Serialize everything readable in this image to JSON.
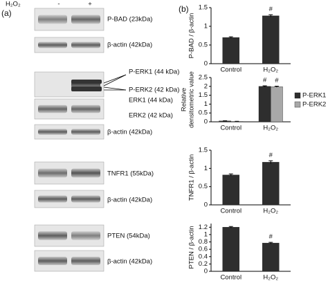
{
  "panel_a": {
    "label": "(a)",
    "treatment": "H₂O₂",
    "lanes": [
      "-",
      "+"
    ],
    "blots": [
      "P-BAD (23kDa)",
      "β-actin (42kDa)",
      "P-ERK1 (44 kDa)",
      "P-ERK2 (42 kDa)",
      "ERK1 (44 kDa)",
      "ERK2 (42 kDa)",
      "β-actin (42kDa)",
      "TNFR1 (55kDa)",
      "β-actin (42kDa)",
      "PTEN (54kDa)",
      "β-actin (42kDa)"
    ]
  },
  "panel_b": {
    "label": "(b)"
  },
  "chart_data": [
    {
      "type": "bar",
      "ylabel": [
        "P-BAD / β-actin"
      ],
      "categories": [
        "Control",
        "H₂O₂"
      ],
      "values": [
        0.7,
        1.28
      ],
      "errors": [
        0.02,
        0.03
      ],
      "color": "#2e2e2e",
      "ylim": [
        0,
        1.5
      ],
      "yticks": [
        0,
        0.5,
        1,
        1.5
      ],
      "annotations": [
        "#"
      ]
    },
    {
      "type": "bar",
      "ylabel": [
        "Relative",
        "densitometric value"
      ],
      "categories": [
        "Control",
        "H₂O₂"
      ],
      "series": [
        {
          "name": "P-ERK1",
          "color": "#2e2e2e",
          "values": [
            0.05,
            2.0
          ],
          "errors": [
            0.01,
            0.03
          ]
        },
        {
          "name": "P-ERK2",
          "color": "#a8a8a8",
          "values": [
            0.02,
            1.98
          ],
          "errors": [
            0.01,
            0.03
          ]
        }
      ],
      "ylim": [
        0,
        2.5
      ],
      "yticks": [
        0,
        0.5,
        1,
        1.5,
        2,
        2.5
      ],
      "annotations": [
        "#",
        "#"
      ],
      "legend": "right"
    },
    {
      "type": "bar",
      "ylabel": [
        "TNFR1 / β-actin"
      ],
      "categories": [
        "Control",
        "H₂O₂"
      ],
      "values": [
        0.82,
        1.17
      ],
      "errors": [
        0.03,
        0.04
      ],
      "color": "#2e2e2e",
      "ylim": [
        0,
        1.5
      ],
      "yticks": [
        0,
        0.5,
        1,
        1.5
      ],
      "annotations": [
        "#"
      ]
    },
    {
      "type": "bar",
      "ylabel": [
        "PTEN / β-actin"
      ],
      "categories": [
        "Control",
        "H₂O₂"
      ],
      "values": [
        1.2,
        0.77
      ],
      "errors": [
        0.02,
        0.02
      ],
      "color": "#2e2e2e",
      "ylim": [
        0,
        1.3
      ],
      "yticks": [
        0,
        0.2,
        0.4,
        0.6,
        0.8,
        1,
        1.2
      ],
      "annotations": [
        "#"
      ]
    }
  ]
}
